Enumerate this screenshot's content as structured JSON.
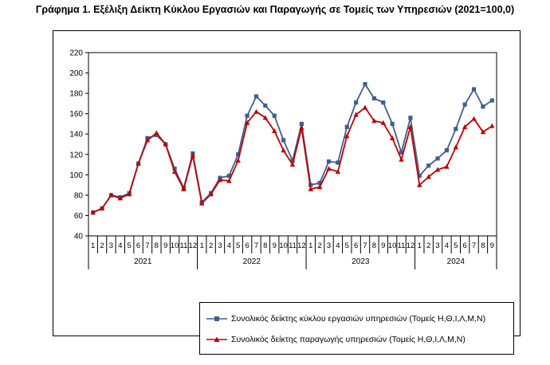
{
  "title": "Γράφημα 1. Εξέλιξη Δείκτη Κύκλου Εργασιών και Παραγωγής σε Τομείς των Υπηρεσιών (2021=100,0)",
  "colors": {
    "series_turnover": "#3f5f8f",
    "series_production": "#c00000",
    "axis": "#000000"
  },
  "chart_data": {
    "type": "line",
    "title": "Γράφημα 1. Εξέλιξη Δείκτη Κύκλου Εργασιών και Παραγωγής σε Τομείς των Υπηρεσιών (2021=100,0)",
    "xlabel": "",
    "ylabel": "",
    "ylim": [
      40,
      220
    ],
    "yticks": [
      40,
      60,
      80,
      100,
      120,
      140,
      160,
      180,
      200,
      220
    ],
    "grid": false,
    "legend_position": "bottom",
    "categories": [
      "1",
      "2",
      "3",
      "4",
      "5",
      "6",
      "7",
      "8",
      "9",
      "10",
      "11",
      "12",
      "1",
      "2",
      "3",
      "4",
      "5",
      "6",
      "7",
      "8",
      "9",
      "10",
      "11",
      "12",
      "1",
      "2",
      "3",
      "4",
      "5",
      "6",
      "7",
      "8",
      "9",
      "10",
      "11",
      "12",
      "1",
      "2",
      "3",
      "4",
      "5",
      "6",
      "7",
      "8",
      "9"
    ],
    "year_groups": [
      {
        "label": "2021",
        "months": 12
      },
      {
        "label": "2022",
        "months": 12
      },
      {
        "label": "2023",
        "months": 12
      },
      {
        "label": "2024",
        "months": 9
      }
    ],
    "series": [
      {
        "name": "Συνολικός δείκτης κύκλου εργασιών υπηρεσιών (Τομείς Η,Θ,Ι,Λ,Μ,Ν)",
        "color": "#3f5f8f",
        "marker": "square",
        "values": [
          63,
          67,
          80,
          78,
          82,
          111,
          136,
          139,
          130,
          106,
          87,
          121,
          73,
          82,
          97,
          99,
          120,
          158,
          177,
          168,
          158,
          134,
          114,
          150,
          90,
          92,
          113,
          112,
          147,
          171,
          189,
          175,
          171,
          150,
          122,
          156,
          99,
          109,
          116,
          124,
          145,
          169,
          184,
          167,
          173
        ]
      },
      {
        "name": "Συνολικός δείκτης παραγωγής υπηρεσιών (Τομείς Η,Θ,Ι,Λ,Μ,Ν)",
        "color": "#c00000",
        "marker": "triangle",
        "values": [
          63,
          67,
          80,
          77,
          81,
          111,
          134,
          141,
          130,
          103,
          86,
          119,
          72,
          81,
          95,
          94,
          114,
          151,
          162,
          156,
          143,
          124,
          110,
          146,
          86,
          88,
          106,
          103,
          138,
          159,
          166,
          153,
          151,
          136,
          115,
          147,
          90,
          98,
          105,
          108,
          127,
          147,
          155,
          142,
          148
        ]
      }
    ]
  }
}
